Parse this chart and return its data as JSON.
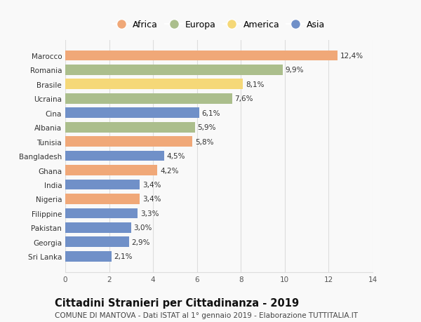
{
  "countries": [
    "Marocco",
    "Romania",
    "Brasile",
    "Ucraina",
    "Cina",
    "Albania",
    "Tunisia",
    "Bangladesh",
    "Ghana",
    "India",
    "Nigeria",
    "Filippine",
    "Pakistan",
    "Georgia",
    "Sri Lanka"
  ],
  "values": [
    12.4,
    9.9,
    8.1,
    7.6,
    6.1,
    5.9,
    5.8,
    4.5,
    4.2,
    3.4,
    3.4,
    3.3,
    3.0,
    2.9,
    2.1
  ],
  "continents": [
    "Africa",
    "Europa",
    "America",
    "Europa",
    "Asia",
    "Europa",
    "Africa",
    "Asia",
    "Africa",
    "Asia",
    "Africa",
    "Asia",
    "Asia",
    "Asia",
    "Asia"
  ],
  "continent_colors": {
    "Africa": "#F0A878",
    "Europa": "#ABBE8C",
    "America": "#F5D878",
    "Asia": "#7090C8"
  },
  "legend_order": [
    "Africa",
    "Europa",
    "America",
    "Asia"
  ],
  "xlim": [
    0,
    14
  ],
  "xticks": [
    0,
    2,
    4,
    6,
    8,
    10,
    12,
    14
  ],
  "title": "Cittadini Stranieri per Cittadinanza - 2019",
  "subtitle": "COMUNE DI MANTOVA - Dati ISTAT al 1° gennaio 2019 - Elaborazione TUTTITALIA.IT",
  "title_fontsize": 10.5,
  "subtitle_fontsize": 7.5,
  "bar_height": 0.72,
  "background_color": "#f9f9f9",
  "grid_color": "#dddddd",
  "label_fontsize": 7.5,
  "tick_fontsize": 7.5
}
